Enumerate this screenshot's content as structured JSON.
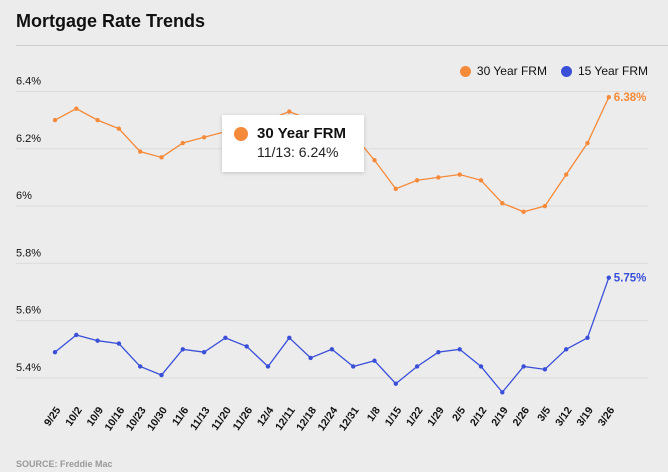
{
  "title": "Mortgage Rate Trends",
  "source": "SOURCE: Freddie Mac",
  "colors": {
    "fixed30": "#f58a3a",
    "fixed15": "#3a4fd8",
    "grid": "#dcdcdc"
  },
  "legend": {
    "series30": "30 Year FRM",
    "series15": "15 Year FRM"
  },
  "tooltip": {
    "series": "30 Year FRM",
    "text": "11/13: 6.24%"
  },
  "chart_data": {
    "type": "line",
    "title": "Mortgage Rate Trends",
    "categories": [
      "9/25",
      "10/2",
      "10/9",
      "10/16",
      "10/23",
      "10/30",
      "11/6",
      "11/13",
      "11/20",
      "11/26",
      "12/4",
      "12/11",
      "12/18",
      "12/24",
      "12/31",
      "1/8",
      "1/15",
      "1/22",
      "1/29",
      "2/5",
      "2/12",
      "2/19",
      "2/26",
      "3/5",
      "3/12",
      "3/19",
      "3/26"
    ],
    "y_tick_values": [
      5.4,
      5.6,
      5.8,
      6.0,
      6.2,
      6.4
    ],
    "y_tick_labels": [
      "5.4%",
      "5.6%",
      "5.8%",
      "6%",
      "6.2%",
      "6.4%"
    ],
    "ylim": [
      5.33,
      6.44
    ],
    "grid": true,
    "legend_position": "top-right",
    "series": [
      {
        "name": "30 Year FRM",
        "values": [
          6.3,
          6.34,
          6.3,
          6.27,
          6.19,
          6.17,
          6.22,
          6.24,
          6.26,
          6.28,
          6.3,
          6.33,
          6.3,
          6.28,
          6.25,
          6.16,
          6.06,
          6.09,
          6.1,
          6.11,
          6.09,
          6.01,
          5.98,
          6.0,
          6.11,
          6.22,
          6.38
        ],
        "end_label": "6.38%"
      },
      {
        "name": "15 Year FRM",
        "values": [
          5.49,
          5.55,
          5.53,
          5.52,
          5.44,
          5.41,
          5.5,
          5.49,
          5.54,
          5.51,
          5.44,
          5.54,
          5.47,
          5.5,
          5.44,
          5.46,
          5.38,
          5.44,
          5.49,
          5.5,
          5.44,
          5.35,
          5.44,
          5.43,
          5.5,
          5.54,
          5.75
        ],
        "end_label": "5.75%"
      }
    ],
    "tooltip_point": {
      "series": "30 Year FRM",
      "category": "11/13",
      "value": 6.24
    }
  }
}
